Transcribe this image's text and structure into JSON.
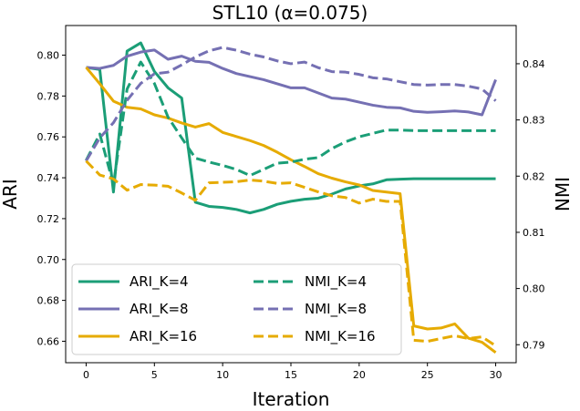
{
  "chart_data": {
    "type": "line",
    "title": "STL10 (α=0.075)",
    "xlabel": "Iteration",
    "ylabel_left": "ARI",
    "ylabel_right": "NMI",
    "xlim": [
      -1.5,
      31.5
    ],
    "ylim_left": [
      0.6495,
      0.8145
    ],
    "ylim_right": [
      0.7868,
      0.8468
    ],
    "xticks": [
      0,
      5,
      10,
      15,
      20,
      25,
      30
    ],
    "yticks_left": [
      0.66,
      0.68,
      0.7,
      0.72,
      0.74,
      0.76,
      0.78,
      0.8
    ],
    "yticks_right": [
      0.79,
      0.8,
      0.81,
      0.82,
      0.83,
      0.84
    ],
    "grid": false,
    "legend_position": "bottom-left",
    "legend_columns": 2,
    "colors": {
      "K4": "#1b9e77",
      "K8": "#7570b3",
      "K16": "#e6ab02"
    },
    "x": [
      0,
      1,
      2,
      3,
      4,
      5,
      6,
      7,
      8,
      9,
      10,
      11,
      12,
      13,
      14,
      15,
      16,
      17,
      18,
      19,
      20,
      21,
      22,
      23,
      24,
      25,
      26,
      27,
      28,
      29,
      30
    ],
    "series": [
      {
        "name": "ARI_K=4",
        "axis": "left",
        "style": "solid",
        "color": "#1b9e77",
        "values": [
          0.794,
          0.793,
          0.733,
          0.802,
          0.806,
          0.792,
          0.784,
          0.779,
          0.728,
          0.726,
          0.7255,
          0.7245,
          0.7228,
          0.7245,
          0.727,
          0.7285,
          0.7295,
          0.73,
          0.732,
          0.7345,
          0.736,
          0.737,
          0.739,
          0.7393,
          0.7395,
          0.7395,
          0.7395,
          0.7395,
          0.7395,
          0.7395,
          0.7395
        ]
      },
      {
        "name": "ARI_K=8",
        "axis": "left",
        "style": "solid",
        "color": "#7570b3",
        "values": [
          0.794,
          0.7935,
          0.795,
          0.7995,
          0.8015,
          0.8025,
          0.798,
          0.7995,
          0.797,
          0.7965,
          0.7935,
          0.791,
          0.7895,
          0.788,
          0.786,
          0.784,
          0.784,
          0.7815,
          0.779,
          0.7785,
          0.777,
          0.7755,
          0.7745,
          0.7742,
          0.7725,
          0.772,
          0.7723,
          0.7727,
          0.7722,
          0.7708,
          0.788
        ]
      },
      {
        "name": "ARI_K=16",
        "axis": "left",
        "style": "solid",
        "color": "#e6ab02",
        "values": [
          0.794,
          0.786,
          0.7775,
          0.7745,
          0.7737,
          0.7708,
          0.7692,
          0.7668,
          0.7648,
          0.7665,
          0.7622,
          0.7602,
          0.7582,
          0.7558,
          0.7525,
          0.7488,
          0.7455,
          0.742,
          0.7398,
          0.738,
          0.7365,
          0.7338,
          0.733,
          0.7322,
          0.6675,
          0.666,
          0.6665,
          0.6685,
          0.6615,
          0.6595,
          0.6545
        ]
      },
      {
        "name": "NMI_K=4",
        "axis": "right",
        "style": "dashed",
        "color": "#1b9e77",
        "values": [
          0.8228,
          0.8275,
          0.8185,
          0.8355,
          0.8403,
          0.8365,
          0.8305,
          0.8268,
          0.8232,
          0.8225,
          0.8219,
          0.8212,
          0.8201,
          0.8212,
          0.8223,
          0.8225,
          0.823,
          0.8233,
          0.8249,
          0.8261,
          0.827,
          0.8276,
          0.8282,
          0.8282,
          0.8281,
          0.8281,
          0.8281,
          0.8281,
          0.8281,
          0.8281,
          0.8281
        ]
      },
      {
        "name": "NMI_K=8",
        "axis": "right",
        "style": "dashed",
        "color": "#7570b3",
        "values": [
          0.8227,
          0.8268,
          0.8295,
          0.8335,
          0.8365,
          0.8382,
          0.8385,
          0.8398,
          0.8412,
          0.8423,
          0.8429,
          0.8424,
          0.8417,
          0.8412,
          0.8405,
          0.84,
          0.8403,
          0.8393,
          0.8386,
          0.8385,
          0.8381,
          0.8375,
          0.8373,
          0.8368,
          0.8363,
          0.8362,
          0.8363,
          0.8363,
          0.836,
          0.8355,
          0.8334
        ]
      },
      {
        "name": "NMI_K=16",
        "axis": "right",
        "style": "dashed",
        "color": "#e6ab02",
        "values": [
          0.8227,
          0.8202,
          0.8195,
          0.8175,
          0.8185,
          0.8184,
          0.8182,
          0.817,
          0.8157,
          0.8188,
          0.8189,
          0.819,
          0.8193,
          0.8191,
          0.8187,
          0.8188,
          0.818,
          0.8172,
          0.8165,
          0.8162,
          0.8152,
          0.8159,
          0.8155,
          0.8155,
          0.7908,
          0.7906,
          0.7911,
          0.7916,
          0.7911,
          0.7914,
          0.7898
        ]
      }
    ]
  }
}
